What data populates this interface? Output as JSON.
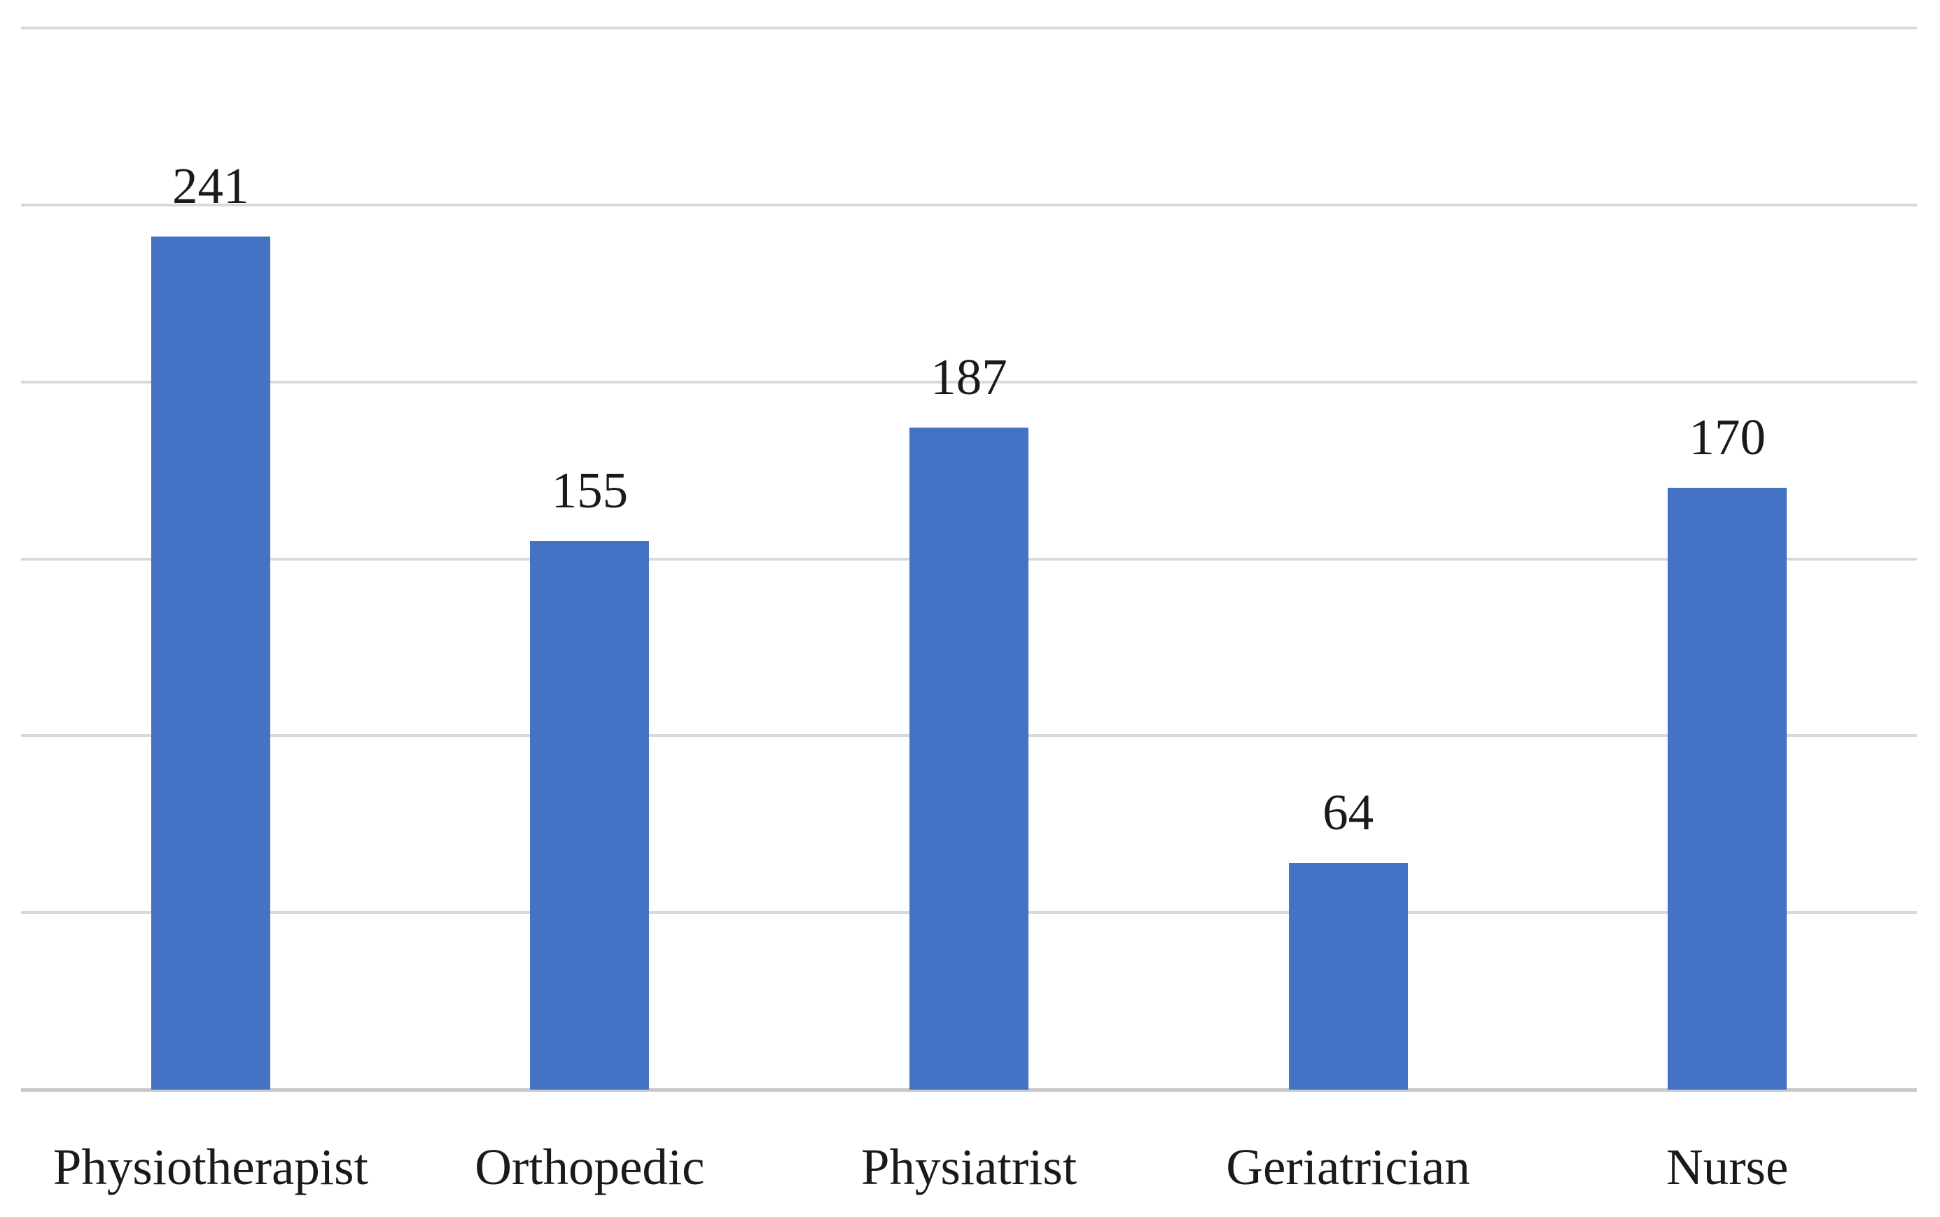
{
  "figure": {
    "background_color": "#FFFFFF"
  },
  "chart_data": {
    "type": "bar",
    "title": "",
    "xlabel": "",
    "ylabel": "",
    "categories": [
      "Physiotherapist",
      "Orthopedic",
      "Physiatrist",
      "Geriatrician",
      "Nurse"
    ],
    "values": [
      241,
      155,
      187,
      64,
      170
    ],
    "data_labels": [
      "241",
      "155",
      "187",
      "64",
      "170"
    ],
    "ylim": [
      0,
      300
    ],
    "ytick_step": 50,
    "ytick_labels_visible": false,
    "grid": "horizontal",
    "legend_position": "none",
    "bar_color": "#4472C4",
    "gridline_color": "#D9D9D9",
    "axis_line_color": "#C9C9C9",
    "text_color": "#1A1A1A"
  }
}
